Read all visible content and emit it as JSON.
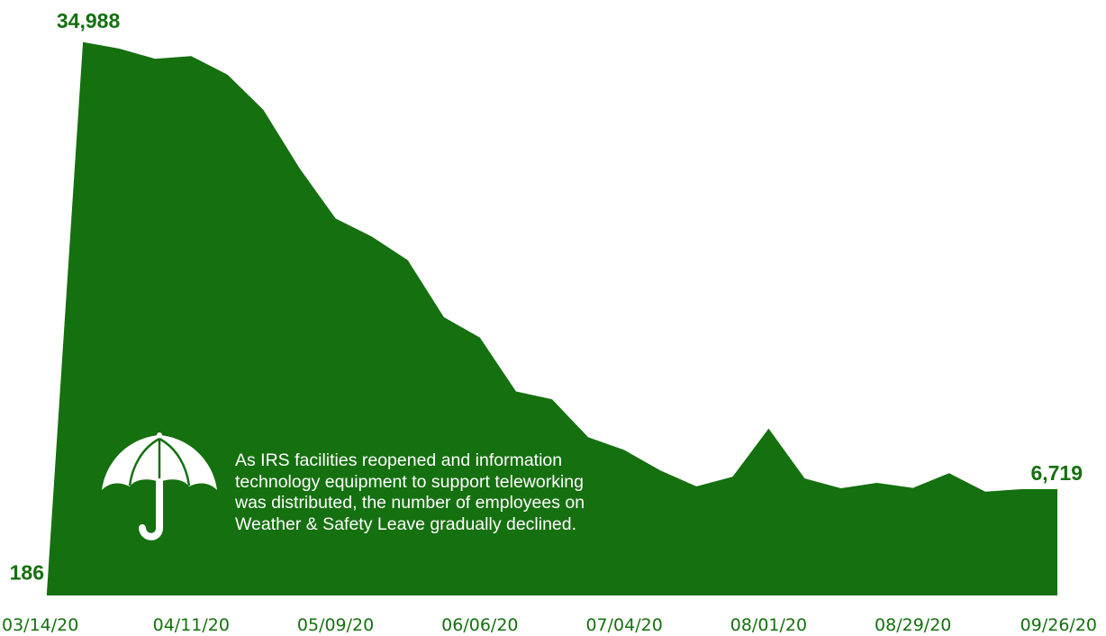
{
  "colors": {
    "area_fill": "#15700f",
    "label_text": "#15700f",
    "annotation_text": "#ffffff"
  },
  "annotation": {
    "icon": "umbrella-icon",
    "lines": [
      "As IRS facilities reopened and information",
      "technology equipment to support teleworking",
      "was distributed, the number of employees on",
      "Weather & Safety Leave gradually declined."
    ]
  },
  "chart_data": {
    "type": "area",
    "x": [
      "03/14/20",
      "03/21/20",
      "03/28/20",
      "04/04/20",
      "04/11/20",
      "04/18/20",
      "04/25/20",
      "05/02/20",
      "05/09/20",
      "05/16/20",
      "05/23/20",
      "05/30/20",
      "06/06/20",
      "06/13/20",
      "06/20/20",
      "06/27/20",
      "07/04/20",
      "07/11/20",
      "07/18/20",
      "07/25/20",
      "08/01/20",
      "08/08/20",
      "08/15/20",
      "08/22/20",
      "08/29/20",
      "09/05/20",
      "09/12/20",
      "09/19/20",
      "09/26/20"
    ],
    "values": [
      186,
      34988,
      34580,
      33930,
      34110,
      32940,
      30710,
      27020,
      23840,
      22700,
      21200,
      17600,
      16300,
      12900,
      12400,
      10000,
      9200,
      7900,
      6900,
      7500,
      10550,
      7400,
      6780,
      7120,
      6800,
      7730,
      6560,
      6719,
      6719
    ],
    "xticks": [
      "03/14/20",
      "04/11/20",
      "05/09/20",
      "06/06/20",
      "07/04/20",
      "08/01/20",
      "08/29/20",
      "09/26/20"
    ],
    "point_labels": [
      {
        "x": "03/14/20",
        "text": "186"
      },
      {
        "x": "03/21/20",
        "text": "34,988"
      },
      {
        "x": "09/26/20",
        "text": "6,719"
      }
    ],
    "ylim": [
      0,
      36000
    ],
    "grid": false,
    "title": "",
    "xlabel": "",
    "ylabel": ""
  }
}
